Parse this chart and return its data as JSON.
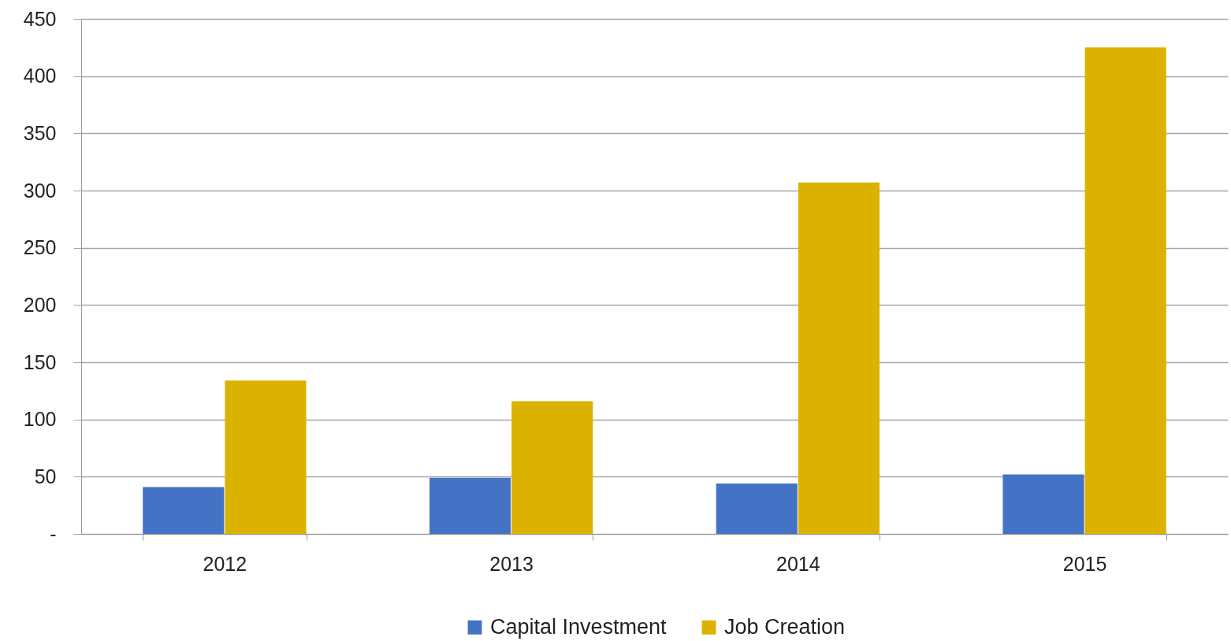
{
  "chart_data": {
    "type": "bar",
    "categories": [
      "2012",
      "2013",
      "2014",
      "2015"
    ],
    "series": [
      {
        "name": "Capital Investment",
        "color": "#4472c4",
        "values": [
          41,
          49,
          44,
          52
        ]
      },
      {
        "name": "Job Creation",
        "color": "#dbb200",
        "values": [
          134,
          116,
          307,
          425
        ]
      }
    ],
    "ylim": [
      0,
      450
    ],
    "yticks": [
      {
        "value": 0,
        "label": "-"
      },
      50,
      100,
      150,
      200,
      250,
      300,
      350,
      400,
      450
    ],
    "grid": "y",
    "legend": "bottom"
  }
}
